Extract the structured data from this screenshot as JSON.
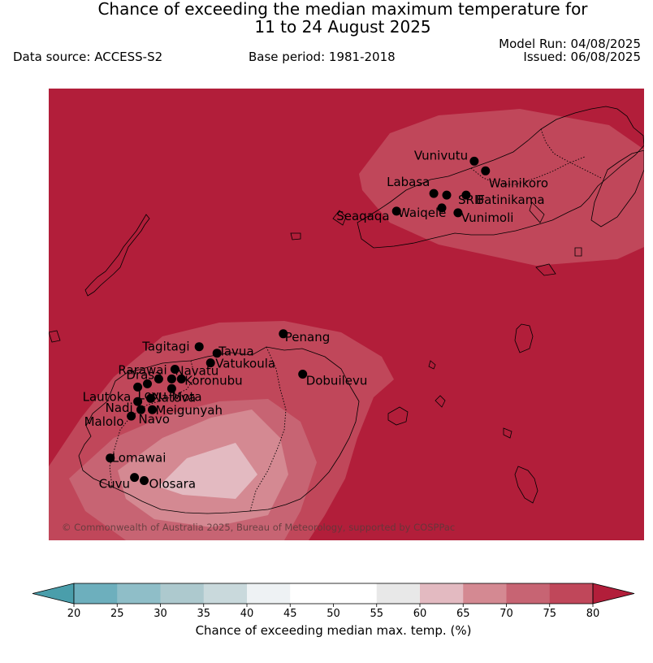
{
  "title": {
    "line1": "Chance of exceeding the median maximum temperature for",
    "line2": "11 to 24 August 2025"
  },
  "info": {
    "data_source": "Data source: ACCESS-S2",
    "base_period": "Base period: 1981-2018",
    "model_run": "Model Run: 04/08/2025",
    "issued": "Issued: 06/08/2025"
  },
  "map": {
    "background_color": "#b21e3a",
    "copyright": "© Commonwealth of Australia 2025, Bureau of Meteorology, supported by COSPPac",
    "stations": [
      {
        "name": "Vunivutu",
        "lon": 179.35,
        "lat": -16.3
      },
      {
        "name": "Wainikoro",
        "lon": 179.42,
        "lat": -16.36
      },
      {
        "name": "Labasa",
        "lon": 179.1,
        "lat": -16.5
      },
      {
        "name": "SRIF",
        "lon": 179.18,
        "lat": -16.51
      },
      {
        "name": "Batinikama",
        "lon": 179.3,
        "lat": -16.51
      },
      {
        "name": "Waiqele",
        "lon": 179.15,
        "lat": -16.59
      },
      {
        "name": "Vunimoli",
        "lon": 179.25,
        "lat": -16.62
      },
      {
        "name": "Seaqaqa",
        "lon": 178.87,
        "lat": -16.61
      },
      {
        "name": "Penang",
        "lon": 178.17,
        "lat": -17.37
      },
      {
        "name": "Tagitagi",
        "lon": 177.65,
        "lat": -17.45
      },
      {
        "name": "Tavua",
        "lon": 177.76,
        "lat": -17.49
      },
      {
        "name": "Vatukoula",
        "lon": 177.72,
        "lat": -17.55
      },
      {
        "name": "Rarawai",
        "lon": 177.5,
        "lat": -17.59
      },
      {
        "name": "Navatu",
        "lon": 177.48,
        "lat": -17.65
      },
      {
        "name": "Koronubu",
        "lon": 177.54,
        "lat": -17.65
      },
      {
        "name": "Drasa",
        "lon": 177.4,
        "lat": -17.65
      },
      {
        "name": "Lovu",
        "lon": 177.33,
        "lat": -17.68
      },
      {
        "name": "Lautoka",
        "lon": 177.27,
        "lat": -17.7
      },
      {
        "name": "Mota",
        "lon": 177.48,
        "lat": -17.71
      },
      {
        "name": "Dobuilevu",
        "lon": 178.29,
        "lat": -17.62
      },
      {
        "name": "Natova",
        "lon": 177.35,
        "lat": -17.77
      },
      {
        "name": "Nadi",
        "lon": 177.27,
        "lat": -17.79
      },
      {
        "name": "Meigunyah",
        "lon": 177.36,
        "lat": -17.84
      },
      {
        "name": "Navo",
        "lon": 177.29,
        "lat": -17.84
      },
      {
        "name": "Malolo",
        "lon": 177.23,
        "lat": -17.88
      },
      {
        "name": "Lomawai",
        "lon": 177.1,
        "lat": -18.14
      },
      {
        "name": "Cuvu",
        "lon": 177.25,
        "lat": -18.26
      },
      {
        "name": "Olosara",
        "lon": 177.31,
        "lat": -18.28
      }
    ]
  },
  "colorbar": {
    "label": "Chance of exceeding median max. temp. (%)",
    "ticks": [
      "20",
      "25",
      "30",
      "35",
      "40",
      "45",
      "50",
      "55",
      "60",
      "65",
      "70",
      "75",
      "80"
    ],
    "colors": [
      "#4a9eab",
      "#6dafbd",
      "#8fbec8",
      "#adc9ce",
      "#c9d9dc",
      "#eef2f4",
      "#ffffff",
      "#ffffff",
      "#e8e8e8",
      "#e3bac1",
      "#d48992",
      "#c76473",
      "#c0475a",
      "#b21e3a"
    ]
  }
}
